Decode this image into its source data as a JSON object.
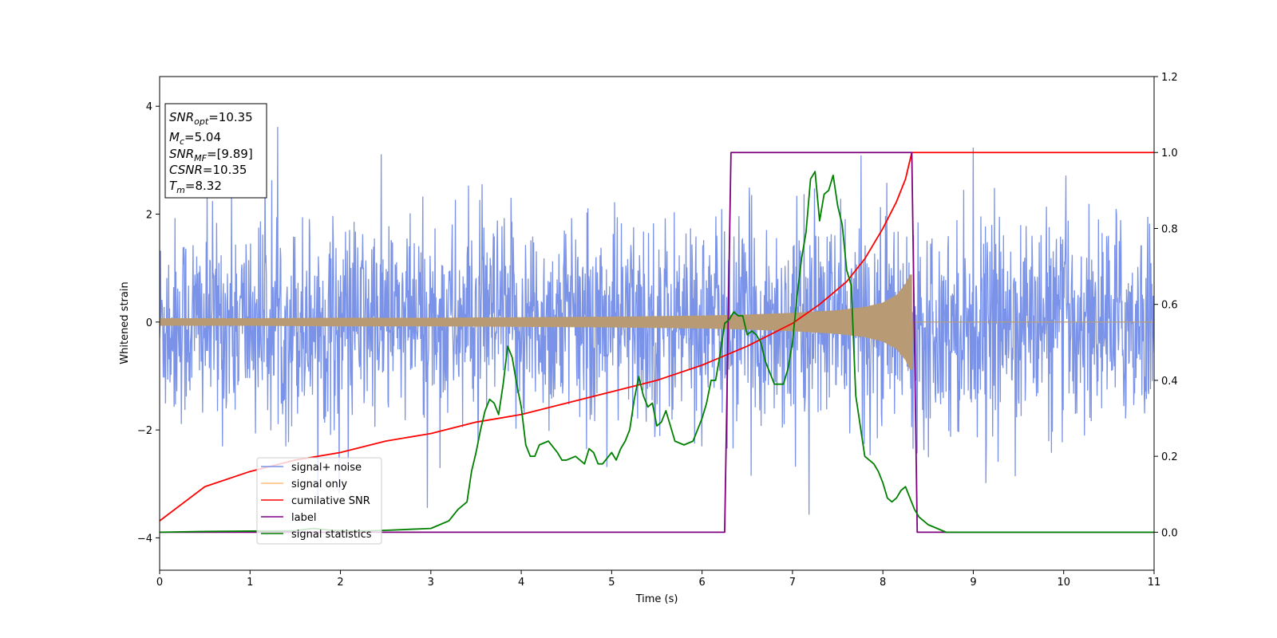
{
  "chart_data": {
    "type": "line",
    "xlabel": "Time (s)",
    "ylabel": "Whitened strain",
    "xlim": [
      0,
      11
    ],
    "ylim": [
      -4.6,
      4.55
    ],
    "y2lim": [
      -0.1,
      1.2
    ],
    "xticks": [
      0,
      1,
      2,
      3,
      4,
      5,
      6,
      7,
      8,
      9,
      10,
      11
    ],
    "yticks": [
      -4,
      -2,
      0,
      2,
      4
    ],
    "y2ticks": [
      "0.0",
      "0.2",
      "0.4",
      "0.6",
      "0.8",
      "1.0",
      "1.2"
    ],
    "y2tick_values": [
      0.0,
      0.2,
      0.4,
      0.6,
      0.8,
      1.0,
      1.2
    ],
    "legend_position": "lower-left",
    "info_box": {
      "snr_opt": {
        "main": "SNR",
        "sub": "opt",
        "value": "=10.35"
      },
      "mc": {
        "main": "M",
        "sub": "c",
        "value": "=5.04"
      },
      "snr_mf": {
        "main": "SNR",
        "sub": "MF",
        "value": "=[9.89]"
      },
      "csnr": {
        "main": "CSNR",
        "value": "=10.35"
      },
      "tm": {
        "main": "T",
        "sub": "m",
        "value": "=8.32"
      }
    },
    "series": [
      {
        "name": "signal+ noise",
        "color": "#7a93e8",
        "axis": "left",
        "noise_std": 0.95,
        "x_range": [
          0,
          11
        ],
        "sample_count": 2200
      },
      {
        "name": "signal only",
        "color": "#ffbb78",
        "axis": "left",
        "envelope": {
          "x": [
            0,
            1,
            2,
            3,
            4,
            5,
            6,
            6.5,
            7,
            7.5,
            7.8,
            8.0,
            8.15,
            8.25,
            8.3
          ],
          "y": [
            0.07,
            0.07,
            0.08,
            0.08,
            0.09,
            0.1,
            0.12,
            0.14,
            0.17,
            0.22,
            0.28,
            0.36,
            0.5,
            0.7,
            0.88
          ]
        },
        "merger_time": 8.32,
        "end_x": 11
      },
      {
        "name": "cumilative SNR",
        "color": "#ff0000",
        "axis": "right",
        "x": [
          0,
          0.5,
          1,
          1.5,
          2,
          2.5,
          3,
          3.5,
          4,
          4.5,
          5,
          5.5,
          6,
          6.5,
          7,
          7.3,
          7.6,
          7.8,
          8.0,
          8.15,
          8.25,
          8.32,
          9,
          10,
          11
        ],
        "y": [
          0.03,
          0.12,
          0.16,
          0.19,
          0.21,
          0.24,
          0.26,
          0.29,
          0.31,
          0.34,
          0.37,
          0.4,
          0.44,
          0.49,
          0.55,
          0.6,
          0.66,
          0.72,
          0.8,
          0.87,
          0.93,
          1.0,
          1.0,
          1.0,
          1.0
        ]
      },
      {
        "name": "label",
        "color": "#800080",
        "axis": "right",
        "x": [
          0,
          6.25,
          6.32,
          8.32,
          8.38,
          11
        ],
        "y": [
          0,
          0,
          1,
          1,
          0,
          0
        ]
      },
      {
        "name": "signal statistics",
        "color": "#008000",
        "axis": "right",
        "x": [
          0,
          0.5,
          1,
          1.5,
          1.7,
          1.9,
          2.2,
          2.5,
          2.8,
          3.0,
          3.1,
          3.2,
          3.3,
          3.35,
          3.4,
          3.45,
          3.5,
          3.55,
          3.6,
          3.65,
          3.7,
          3.75,
          3.8,
          3.85,
          3.9,
          3.95,
          4.0,
          4.05,
          4.1,
          4.15,
          4.2,
          4.3,
          4.4,
          4.45,
          4.5,
          4.6,
          4.7,
          4.75,
          4.8,
          4.85,
          4.9,
          5.0,
          5.05,
          5.1,
          5.15,
          5.2,
          5.25,
          5.3,
          5.35,
          5.4,
          5.45,
          5.5,
          5.55,
          5.6,
          5.7,
          5.8,
          5.9,
          6.0,
          6.05,
          6.1,
          6.15,
          6.2,
          6.25,
          6.3,
          6.35,
          6.4,
          6.45,
          6.5,
          6.55,
          6.6,
          6.65,
          6.7,
          6.8,
          6.9,
          6.95,
          7.0,
          7.05,
          7.1,
          7.15,
          7.2,
          7.25,
          7.3,
          7.35,
          7.4,
          7.45,
          7.5,
          7.55,
          7.6,
          7.65,
          7.7,
          7.75,
          7.8,
          7.85,
          7.9,
          7.95,
          8.0,
          8.05,
          8.1,
          8.15,
          8.2,
          8.25,
          8.3,
          8.35,
          8.4,
          8.5,
          8.6,
          8.7,
          9.0,
          10,
          11
        ],
        "y": [
          0.0,
          0.002,
          0.003,
          0.004,
          0.01,
          0.005,
          0.003,
          0.005,
          0.008,
          0.01,
          0.02,
          0.03,
          0.06,
          0.07,
          0.08,
          0.16,
          0.21,
          0.27,
          0.32,
          0.35,
          0.34,
          0.31,
          0.39,
          0.49,
          0.46,
          0.39,
          0.33,
          0.23,
          0.2,
          0.2,
          0.23,
          0.24,
          0.21,
          0.19,
          0.19,
          0.2,
          0.18,
          0.22,
          0.21,
          0.18,
          0.18,
          0.21,
          0.19,
          0.22,
          0.24,
          0.27,
          0.35,
          0.41,
          0.36,
          0.33,
          0.34,
          0.28,
          0.29,
          0.32,
          0.24,
          0.23,
          0.24,
          0.3,
          0.34,
          0.4,
          0.4,
          0.47,
          0.55,
          0.56,
          0.58,
          0.57,
          0.57,
          0.52,
          0.53,
          0.52,
          0.5,
          0.45,
          0.39,
          0.39,
          0.43,
          0.5,
          0.62,
          0.72,
          0.79,
          0.93,
          0.95,
          0.82,
          0.89,
          0.9,
          0.94,
          0.86,
          0.81,
          0.69,
          0.65,
          0.36,
          0.28,
          0.2,
          0.19,
          0.18,
          0.16,
          0.13,
          0.09,
          0.08,
          0.09,
          0.11,
          0.12,
          0.09,
          0.06,
          0.04,
          0.02,
          0.01,
          0.0,
          0.0,
          0.0,
          0.0
        ]
      }
    ]
  }
}
